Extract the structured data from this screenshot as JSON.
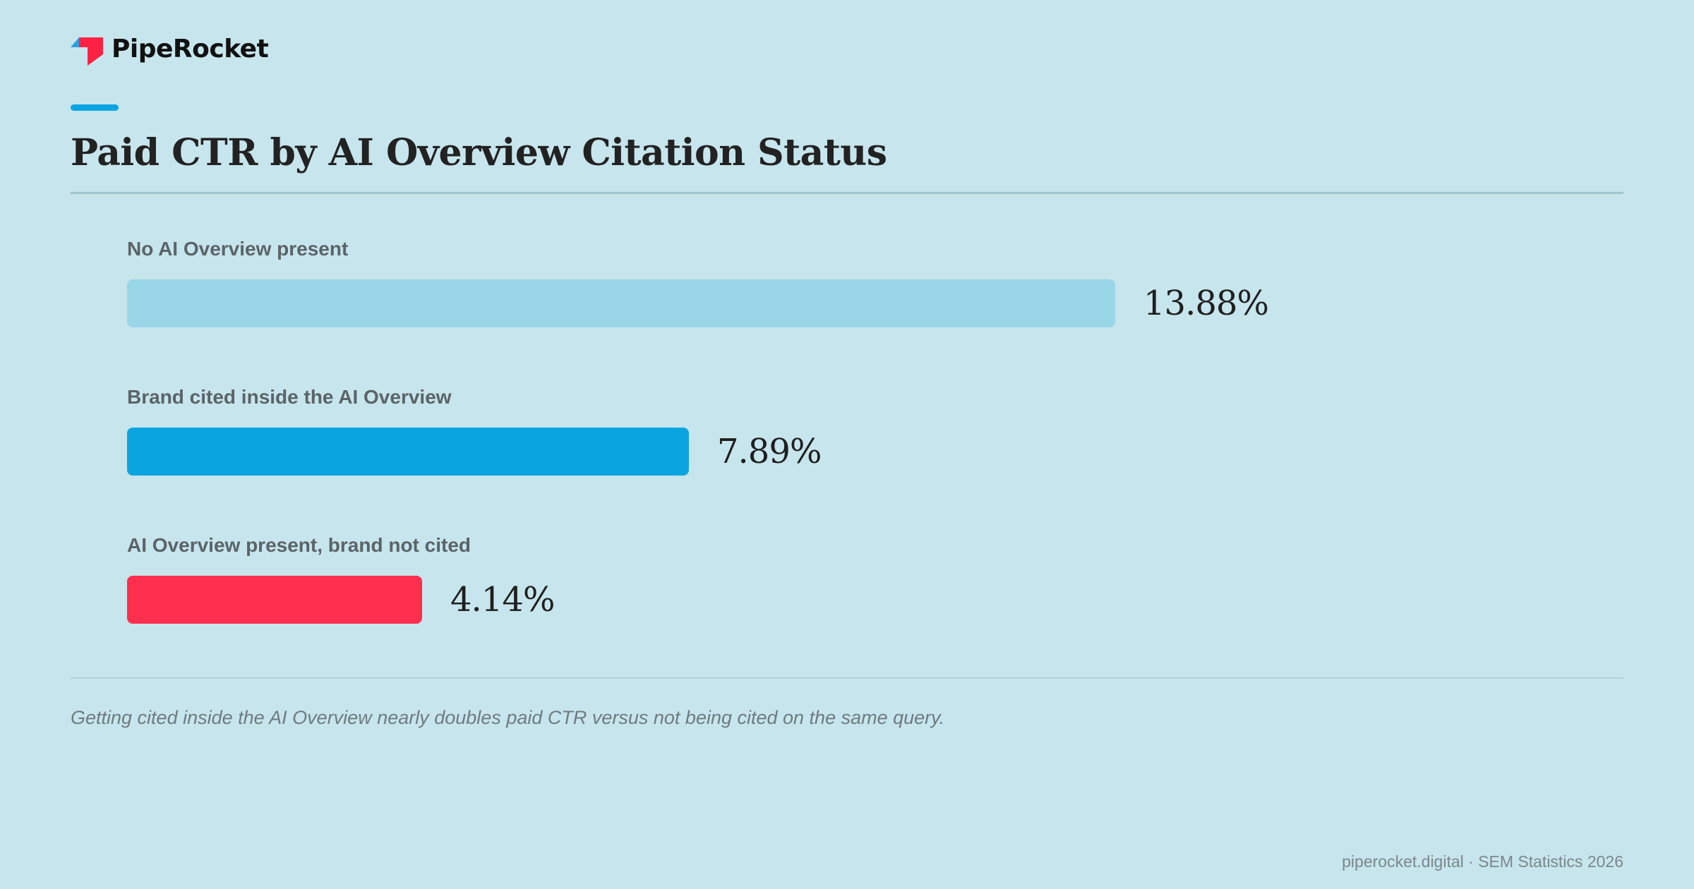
{
  "brand": {
    "name": "PipeRocket",
    "logo_icon": "piperocket-logo-icon",
    "logo_colors": {
      "blue": "#2a9fe0",
      "red": "#ff2244"
    }
  },
  "accent_color": "#0aa5e0",
  "title": "Paid CTR by AI Overview Citation Status",
  "chart_data": {
    "type": "bar",
    "orientation": "horizontal",
    "title": "Paid CTR by AI Overview Citation Status",
    "categories": [
      "No AI Overview present",
      "Brand cited inside the AI Overview",
      "AI Overview present, brand not cited"
    ],
    "values": [
      13.88,
      7.89,
      4.14
    ],
    "value_labels": [
      "13.88%",
      "7.89%",
      "4.14%"
    ],
    "colors": [
      "#99d6e8",
      "#0aa5e0",
      "#ff2f4e"
    ],
    "unit": "%",
    "xlim": [
      0,
      13.88
    ],
    "grid": false,
    "legend": "none"
  },
  "caption": "Getting cited inside the AI Overview nearly doubles paid CTR versus not being cited on the same query.",
  "footer": "piperocket.digital · SEM Statistics 2026"
}
